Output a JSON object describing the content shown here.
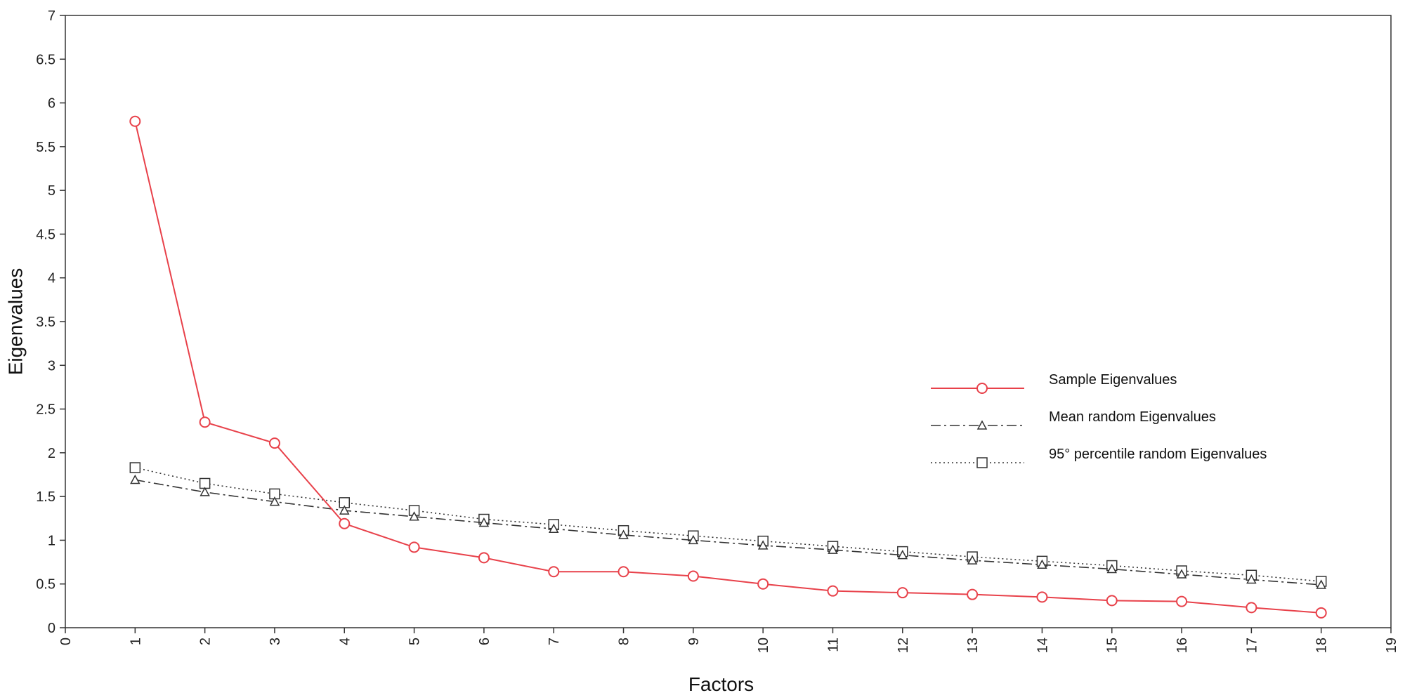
{
  "chart_data": {
    "type": "line",
    "xlabel": "Factors",
    "ylabel": "Eigenvalues",
    "xlim": [
      0,
      19
    ],
    "ylim": [
      0,
      7
    ],
    "x_ticks": [
      0,
      1,
      2,
      3,
      4,
      5,
      6,
      7,
      8,
      9,
      10,
      11,
      12,
      13,
      14,
      15,
      16,
      17,
      18,
      19
    ],
    "y_ticks": [
      0,
      0.5,
      1,
      1.5,
      2,
      2.5,
      3,
      3.5,
      4,
      4.5,
      5,
      5.5,
      6,
      6.5,
      7
    ],
    "x": [
      1,
      2,
      3,
      4,
      5,
      6,
      7,
      8,
      9,
      10,
      11,
      12,
      13,
      14,
      15,
      16,
      17,
      18
    ],
    "grid": false,
    "legend_position": "right",
    "series": [
      {
        "name": "Sample Eigenvalues",
        "color": "#e8414a",
        "dash": "solid",
        "marker": "circle",
        "values": [
          5.79,
          2.35,
          2.11,
          1.19,
          0.92,
          0.8,
          0.64,
          0.64,
          0.59,
          0.5,
          0.42,
          0.4,
          0.38,
          0.35,
          0.31,
          0.3,
          0.23,
          0.17
        ]
      },
      {
        "name": "Mean random Eigenvalues",
        "color": "#333333",
        "dash": "dashdot",
        "marker": "triangle",
        "values": [
          1.69,
          1.55,
          1.44,
          1.34,
          1.27,
          1.2,
          1.13,
          1.06,
          1.0,
          0.94,
          0.89,
          0.83,
          0.77,
          0.72,
          0.67,
          0.61,
          0.55,
          0.49
        ]
      },
      {
        "name": "95° percentile random Eigenvalues",
        "color": "#333333",
        "dash": "dotted",
        "marker": "square",
        "values": [
          1.83,
          1.65,
          1.53,
          1.43,
          1.34,
          1.24,
          1.18,
          1.11,
          1.05,
          0.99,
          0.93,
          0.87,
          0.81,
          0.76,
          0.71,
          0.65,
          0.6,
          0.53
        ]
      }
    ]
  }
}
